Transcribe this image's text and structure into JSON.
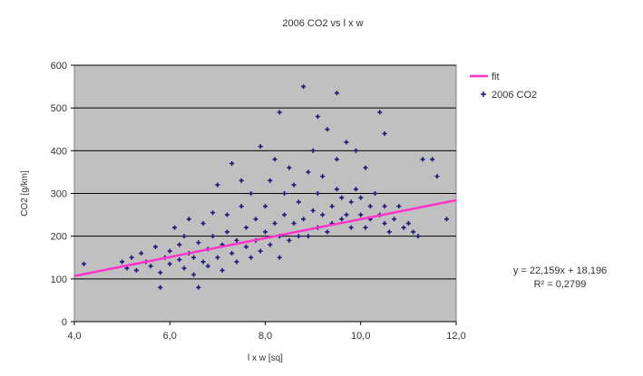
{
  "chart_data": {
    "type": "scatter",
    "title": "2006 CO2 vs l x w",
    "xlabel": "l x w [sq]",
    "ylabel": "CO2 [g/km]",
    "xlim": [
      4.0,
      12.0
    ],
    "ylim": [
      0,
      600
    ],
    "x_ticks": [
      "4,0",
      "6,0",
      "8,0",
      "10,0",
      "12,0"
    ],
    "y_ticks": [
      "0",
      "100",
      "200",
      "300",
      "400",
      "500",
      "600"
    ],
    "grid": true,
    "legend_position": "right",
    "colors": {
      "plot_bg": "#c0c0c0",
      "points": "#1a1a7a",
      "fit": "#ff33cc"
    },
    "series": [
      {
        "name": "2006 CO2",
        "type": "scatter",
        "marker": "plus",
        "points": [
          [
            4.2,
            135
          ],
          [
            5.0,
            140
          ],
          [
            5.1,
            125
          ],
          [
            5.2,
            150
          ],
          [
            5.3,
            120
          ],
          [
            5.4,
            160
          ],
          [
            5.5,
            140
          ],
          [
            5.6,
            130
          ],
          [
            5.7,
            175
          ],
          [
            5.8,
            115
          ],
          [
            5.8,
            80
          ],
          [
            5.9,
            150
          ],
          [
            6.0,
            165
          ],
          [
            6.0,
            135
          ],
          [
            6.1,
            220
          ],
          [
            6.2,
            180
          ],
          [
            6.2,
            145
          ],
          [
            6.3,
            125
          ],
          [
            6.3,
            200
          ],
          [
            6.4,
            160
          ],
          [
            6.4,
            240
          ],
          [
            6.5,
            150
          ],
          [
            6.5,
            110
          ],
          [
            6.6,
            80
          ],
          [
            6.6,
            185
          ],
          [
            6.7,
            140
          ],
          [
            6.7,
            230
          ],
          [
            6.8,
            170
          ],
          [
            6.8,
            130
          ],
          [
            6.9,
            255
          ],
          [
            6.9,
            200
          ],
          [
            7.0,
            150
          ],
          [
            7.0,
            320
          ],
          [
            7.1,
            180
          ],
          [
            7.1,
            120
          ],
          [
            7.2,
            250
          ],
          [
            7.2,
            210
          ],
          [
            7.3,
            160
          ],
          [
            7.3,
            370
          ],
          [
            7.4,
            190
          ],
          [
            7.4,
            140
          ],
          [
            7.5,
            270
          ],
          [
            7.5,
            330
          ],
          [
            7.6,
            175
          ],
          [
            7.6,
            220
          ],
          [
            7.7,
            150
          ],
          [
            7.7,
            300
          ],
          [
            7.8,
            190
          ],
          [
            7.8,
            240
          ],
          [
            7.9,
            165
          ],
          [
            7.9,
            410
          ],
          [
            8.0,
            210
          ],
          [
            8.0,
            270
          ],
          [
            8.1,
            180
          ],
          [
            8.1,
            330
          ],
          [
            8.2,
            230
          ],
          [
            8.2,
            380
          ],
          [
            8.3,
            200
          ],
          [
            8.3,
            150
          ],
          [
            8.4,
            250
          ],
          [
            8.4,
            300
          ],
          [
            8.5,
            190
          ],
          [
            8.5,
            360
          ],
          [
            8.6,
            230
          ],
          [
            8.6,
            320
          ],
          [
            8.7,
            200
          ],
          [
            8.7,
            280
          ],
          [
            8.8,
            550
          ],
          [
            8.8,
            240
          ],
          [
            8.9,
            350
          ],
          [
            8.9,
            200
          ],
          [
            9.0,
            260
          ],
          [
            9.0,
            400
          ],
          [
            9.1,
            220
          ],
          [
            9.1,
            300
          ],
          [
            9.2,
            250
          ],
          [
            9.2,
            340
          ],
          [
            9.3,
            210
          ],
          [
            9.3,
            450
          ],
          [
            9.4,
            270
          ],
          [
            9.4,
            230
          ],
          [
            9.5,
            310
          ],
          [
            9.5,
            380
          ],
          [
            9.6,
            240
          ],
          [
            9.6,
            290
          ],
          [
            9.7,
            250
          ],
          [
            9.7,
            420
          ],
          [
            9.8,
            280
          ],
          [
            9.8,
            220
          ],
          [
            9.9,
            310
          ],
          [
            9.9,
            400
          ],
          [
            10.0,
            250
          ],
          [
            10.0,
            290
          ],
          [
            10.1,
            220
          ],
          [
            10.1,
            360
          ],
          [
            10.2,
            270
          ],
          [
            10.2,
            240
          ],
          [
            10.3,
            300
          ],
          [
            10.4,
            250
          ],
          [
            10.4,
            490
          ],
          [
            10.5,
            270
          ],
          [
            10.5,
            230
          ],
          [
            10.6,
            210
          ],
          [
            10.7,
            240
          ],
          [
            10.8,
            270
          ],
          [
            10.9,
            220
          ],
          [
            11.0,
            230
          ],
          [
            11.1,
            210
          ],
          [
            11.2,
            200
          ],
          [
            11.3,
            380
          ],
          [
            11.5,
            380
          ],
          [
            11.8,
            240
          ],
          [
            11.6,
            340
          ],
          [
            10.5,
            440
          ],
          [
            9.5,
            535
          ],
          [
            9.1,
            480
          ],
          [
            8.3,
            490
          ]
        ]
      },
      {
        "name": "fit",
        "type": "line",
        "slope": 22.159,
        "intercept": 18.196
      }
    ],
    "annotation": {
      "equation": "y = 22,159x + 18,196",
      "r_squared": "R² = 0,2799"
    }
  }
}
